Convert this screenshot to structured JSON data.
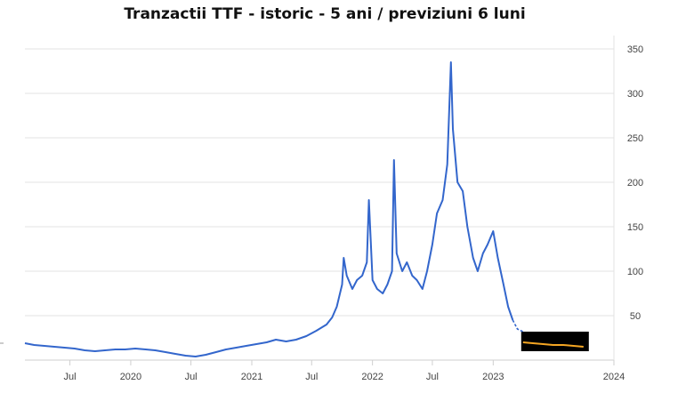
{
  "chart_data": {
    "type": "line",
    "title": "Tranzactii TTF - istoric - 5 ani / previziuni 6 luni",
    "xlabel": "",
    "ylabel": "",
    "ylim": [
      0,
      365
    ],
    "y_ticks": [
      50,
      100,
      150,
      200,
      250,
      300,
      350
    ],
    "x_ticks": [
      "Jul",
      "2020",
      "Jul",
      "2021",
      "Jul",
      "2022",
      "Jul",
      "2023",
      "2024"
    ],
    "x_tick_dates": [
      "2019-07-01",
      "2020-01-01",
      "2020-07-01",
      "2021-01-01",
      "2021-07-01",
      "2022-01-01",
      "2022-07-01",
      "2023-01-01",
      "2024-01-01"
    ],
    "x_range": [
      "2019-02-15",
      "2024-01-01"
    ],
    "grid": true,
    "legend": "none",
    "colors": {
      "history": "#3366cc",
      "forecast": "#f5a623",
      "forecast_bg": "#000000"
    },
    "series": [
      {
        "x": [
          "2019-02-15",
          "2019-03-15",
          "2019-04-15",
          "2019-05-15",
          "2019-06-15",
          "2019-07-15",
          "2019-08-15",
          "2019-09-15",
          "2019-10-15",
          "2019-11-15",
          "2019-12-15",
          "2020-01-15",
          "2020-02-15",
          "2020-03-15",
          "2020-04-15",
          "2020-05-15",
          "2020-06-15",
          "2020-07-15",
          "2020-08-15",
          "2020-09-15",
          "2020-10-15",
          "2020-11-15",
          "2020-12-15",
          "2021-01-15",
          "2021-02-15",
          "2021-03-15",
          "2021-04-15",
          "2021-05-15",
          "2021-06-15",
          "2021-07-15",
          "2021-08-15",
          "2021-09-01",
          "2021-09-15",
          "2021-10-01",
          "2021-10-06",
          "2021-10-15",
          "2021-11-01",
          "2021-11-15",
          "2021-12-01",
          "2021-12-15",
          "2021-12-21",
          "2022-01-01",
          "2022-01-15",
          "2022-02-01",
          "2022-02-15",
          "2022-03-01",
          "2022-03-07",
          "2022-03-15",
          "2022-04-01",
          "2022-04-15",
          "2022-05-01",
          "2022-05-15",
          "2022-06-01",
          "2022-06-15",
          "2022-07-01",
          "2022-07-15",
          "2022-08-01",
          "2022-08-15",
          "2022-08-26",
          "2022-09-01",
          "2022-09-15",
          "2022-10-01",
          "2022-10-15",
          "2022-11-01",
          "2022-11-15",
          "2022-12-01",
          "2022-12-15",
          "2023-01-01",
          "2023-01-15",
          "2023-02-01",
          "2023-02-15",
          "2023-03-01"
        ],
        "values": [
          19,
          17,
          16,
          15,
          14,
          13,
          11,
          10,
          11,
          12,
          12,
          13,
          12,
          11,
          9,
          7,
          5,
          4,
          6,
          9,
          12,
          14,
          16,
          18,
          20,
          23,
          21,
          23,
          27,
          33,
          40,
          48,
          60,
          85,
          115,
          95,
          80,
          90,
          95,
          110,
          180,
          90,
          80,
          75,
          85,
          100,
          225,
          120,
          100,
          110,
          95,
          90,
          80,
          100,
          130,
          165,
          180,
          220,
          335,
          260,
          200,
          190,
          150,
          115,
          100,
          120,
          130,
          145,
          115,
          85,
          60,
          45
        ]
      },
      {
        "x": [
          "2023-03-01",
          "2023-03-15",
          "2023-04-01"
        ],
        "values": [
          45,
          35,
          32
        ]
      },
      {
        "x": [
          "2023-04-01",
          "2023-05-01",
          "2023-06-01",
          "2023-07-01",
          "2023-08-01",
          "2023-09-01",
          "2023-10-01"
        ],
        "values": [
          20,
          19,
          18,
          17,
          17,
          16,
          15
        ]
      }
    ]
  }
}
